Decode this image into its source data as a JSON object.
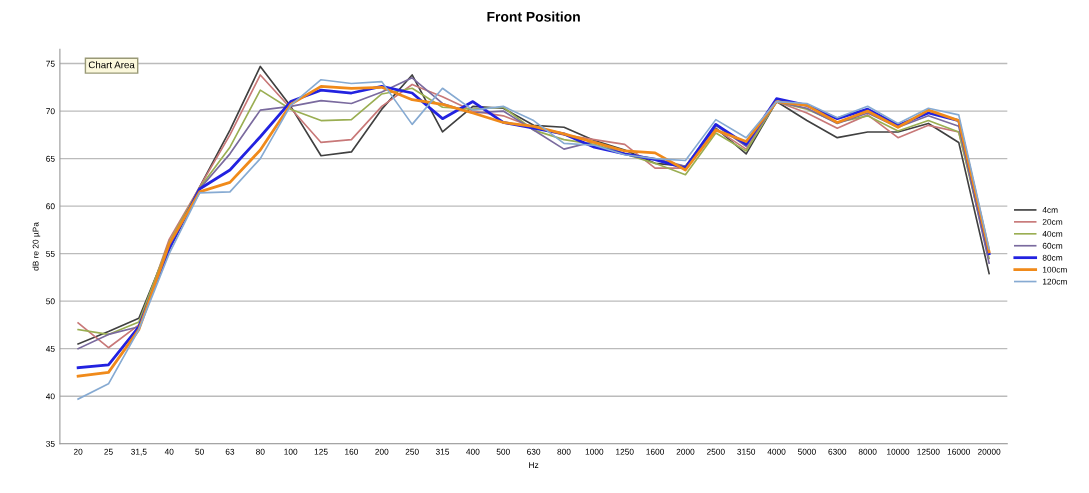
{
  "chart_data": {
    "type": "line",
    "title": "Front Position",
    "xlabel": "Hz",
    "ylabel": "dB re 20 µPa",
    "categories": [
      "20",
      "25",
      "31,5",
      "40",
      "50",
      "63",
      "80",
      "100",
      "125",
      "160",
      "200",
      "250",
      "315",
      "400",
      "500",
      "630",
      "800",
      "1000",
      "1250",
      "1600",
      "2000",
      "2500",
      "3150",
      "4000",
      "5000",
      "6300",
      "8000",
      "10000",
      "12500",
      "16000",
      "20000"
    ],
    "series": [
      {
        "name": "4cm",
        "color": "#404040",
        "values": [
          45.5,
          46.8,
          48.2,
          56.0,
          62.0,
          68.0,
          74.7,
          70.5,
          65.3,
          65.7,
          70.2,
          73.8,
          67.8,
          70.5,
          70.3,
          68.5,
          68.3,
          66.9,
          65.9,
          64.5,
          64.2,
          68.2,
          65.5,
          71.0,
          69.0,
          67.2,
          67.8,
          67.8,
          68.7,
          66.7,
          52.9
        ]
      },
      {
        "name": "20cm",
        "color": "#c87878",
        "values": [
          47.7,
          45.1,
          47.5,
          56.5,
          62.0,
          67.5,
          73.8,
          70.3,
          66.7,
          67.0,
          70.5,
          72.8,
          71.5,
          70.0,
          69.5,
          68.3,
          67.5,
          67.0,
          66.5,
          64.0,
          64.0,
          68.1,
          66.0,
          71.0,
          69.8,
          68.2,
          69.6,
          67.2,
          68.5,
          67.8,
          55.0
        ]
      },
      {
        "name": "40cm",
        "color": "#9aae52",
        "values": [
          47.0,
          46.5,
          47.8,
          56.2,
          61.9,
          66.2,
          72.2,
          70.2,
          69.0,
          69.1,
          71.8,
          72.4,
          70.4,
          70.2,
          70.4,
          68.0,
          67.0,
          66.5,
          65.5,
          64.5,
          63.3,
          67.7,
          65.8,
          71.0,
          70.2,
          68.8,
          69.5,
          67.9,
          69.0,
          67.8,
          54.5
        ]
      },
      {
        "name": "60cm",
        "color": "#7a6a9e",
        "values": [
          45.0,
          46.5,
          47.3,
          55.8,
          61.8,
          65.5,
          70.1,
          70.5,
          71.1,
          70.8,
          72.0,
          73.5,
          70.8,
          69.8,
          70.0,
          68.0,
          66.0,
          66.8,
          65.5,
          65.0,
          64.2,
          68.5,
          66.3,
          71.0,
          70.3,
          68.7,
          69.8,
          68.3,
          69.5,
          68.4,
          54.0
        ]
      },
      {
        "name": "80cm",
        "color": "#2222e0",
        "values": [
          43.0,
          43.3,
          47.3,
          55.5,
          61.8,
          63.8,
          67.3,
          71.0,
          72.2,
          71.9,
          72.6,
          71.9,
          69.2,
          71.0,
          68.8,
          68.2,
          67.6,
          66.2,
          65.5,
          64.9,
          64.0,
          68.6,
          66.5,
          71.3,
          70.6,
          69.2,
          70.2,
          68.5,
          69.8,
          69.0,
          55.0
        ]
      },
      {
        "name": "100cm",
        "color": "#f08a1a",
        "values": [
          42.1,
          42.5,
          47.0,
          56.0,
          61.5,
          62.5,
          65.9,
          70.7,
          72.6,
          72.4,
          72.5,
          71.2,
          70.7,
          69.8,
          68.8,
          68.4,
          67.6,
          66.7,
          65.8,
          65.6,
          63.8,
          68.0,
          66.8,
          71.0,
          70.6,
          68.8,
          70.0,
          68.3,
          70.1,
          69.0,
          55.2
        ]
      },
      {
        "name": "120cm",
        "color": "#86aad2",
        "values": [
          39.7,
          41.3,
          47.0,
          55.0,
          61.4,
          61.5,
          65.0,
          70.6,
          73.3,
          72.9,
          73.1,
          68.6,
          72.4,
          70.1,
          70.5,
          69.0,
          66.6,
          66.4,
          65.4,
          65.0,
          64.8,
          69.1,
          67.2,
          71.0,
          70.8,
          69.3,
          70.5,
          68.7,
          70.3,
          69.6,
          55.5
        ]
      }
    ],
    "ylim": [
      35,
      76.5
    ],
    "yticks": [
      35,
      40,
      45,
      50,
      55,
      60,
      65,
      70,
      75
    ],
    "grid": "y",
    "legend": "right",
    "annotations": [
      "Chart Area"
    ]
  }
}
